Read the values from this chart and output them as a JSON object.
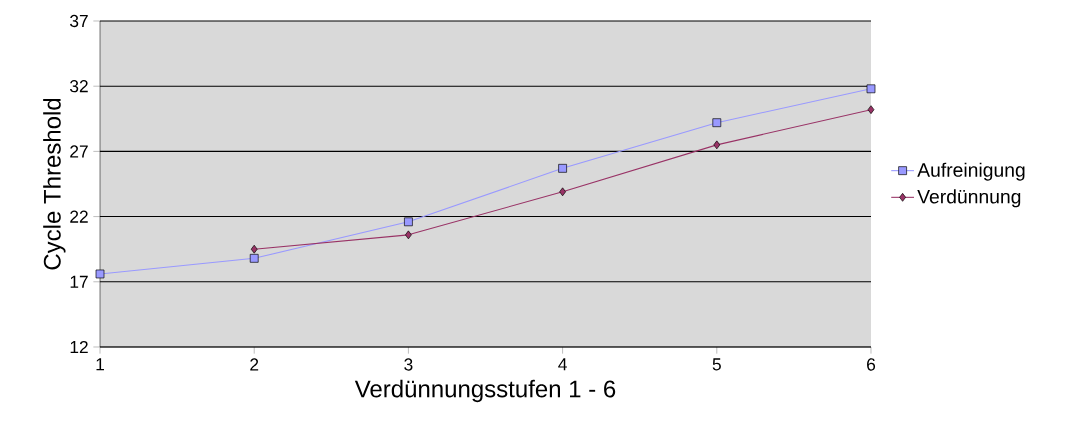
{
  "chart_data": {
    "type": "line",
    "xlabel": "Verdünnungsstufen 1 - 6",
    "ylabel": "Cycle Threshold",
    "x": [
      1,
      2,
      3,
      4,
      5,
      6
    ],
    "series": [
      {
        "name": "Aufreinigung",
        "color": "#9999ff",
        "marker": "square",
        "values": [
          17.6,
          18.8,
          21.6,
          25.7,
          29.2,
          31.8
        ]
      },
      {
        "name": "Verdünnung",
        "color": "#993366",
        "marker": "diamond",
        "values": [
          null,
          19.5,
          20.6,
          23.9,
          27.5,
          30.2
        ]
      }
    ],
    "xlim": [
      1,
      6
    ],
    "xticks": [
      1,
      2,
      3,
      4,
      5,
      6
    ],
    "ylim": [
      12,
      37
    ],
    "yticks": [
      12,
      17,
      22,
      27,
      32,
      37
    ],
    "grid": "y",
    "legend": "right"
  }
}
